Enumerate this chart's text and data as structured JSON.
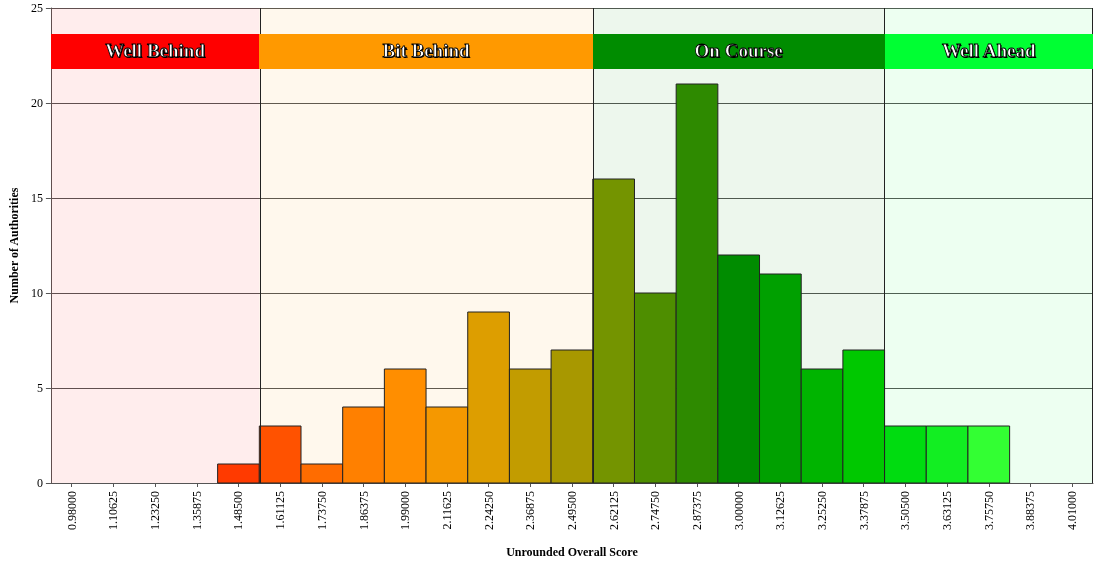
{
  "chart_data": {
    "type": "histogram",
    "xlabel": "Unrounded Overall Score",
    "ylabel": "Number of Authorities",
    "bins": [
      0.916875,
      1.043125,
      1.169375,
      1.295625,
      1.421875,
      1.548125,
      1.674375,
      1.800625,
      1.926875,
      2.053125,
      2.179375,
      2.305625,
      2.431875,
      2.558125,
      2.684375,
      2.810625,
      2.936875,
      3.063125,
      3.189375,
      3.315625,
      3.441875,
      3.568125,
      3.694375,
      3.820625,
      3.946875,
      4.073125
    ],
    "values": [
      0,
      0,
      0,
      0,
      1,
      3,
      1,
      4,
      6,
      4,
      9,
      6,
      7,
      16,
      10,
      21,
      12,
      11,
      6,
      7,
      3,
      3,
      3,
      0,
      0
    ],
    "colors": [
      "#ff2200",
      "#ff2200",
      "#ff2200",
      "#ff2200",
      "#ff3a00",
      "#ff5200",
      "#ff6c00",
      "#ff8000",
      "#ff8e00",
      "#f59800",
      "#dd9e00",
      "#c29c00",
      "#a89800",
      "#749400",
      "#4e8e00",
      "#2e8a00",
      "#008c00",
      "#00a000",
      "#00b400",
      "#00c800",
      "#00dc10",
      "#12ee22",
      "#33ff33",
      "#33ff33",
      "#33ff33"
    ],
    "xlim": [
      0.916875,
      4.073125
    ],
    "xticks": [
      {
        "value": 0.98,
        "label": "0.98000"
      },
      {
        "value": 1.10625,
        "label": "1.10625"
      },
      {
        "value": 1.2325,
        "label": "1.23250"
      },
      {
        "value": 1.35875,
        "label": "1.35875"
      },
      {
        "value": 1.485,
        "label": "1.48500"
      },
      {
        "value": 1.61125,
        "label": "1.61125"
      },
      {
        "value": 1.7375,
        "label": "1.73750"
      },
      {
        "value": 1.86375,
        "label": "1.86375"
      },
      {
        "value": 1.99,
        "label": "1.99000"
      },
      {
        "value": 2.11625,
        "label": "2.11625"
      },
      {
        "value": 2.2425,
        "label": "2.24250"
      },
      {
        "value": 2.36875,
        "label": "2.36875"
      },
      {
        "value": 2.495,
        "label": "2.49500"
      },
      {
        "value": 2.62125,
        "label": "2.62125"
      },
      {
        "value": 2.7475,
        "label": "2.74750"
      },
      {
        "value": 2.87375,
        "label": "2.87375"
      },
      {
        "value": 3.0,
        "label": "3.00000"
      },
      {
        "value": 3.12625,
        "label": "3.12625"
      },
      {
        "value": 3.2525,
        "label": "3.25250"
      },
      {
        "value": 3.37875,
        "label": "3.37875"
      },
      {
        "value": 3.505,
        "label": "3.50500"
      },
      {
        "value": 3.63125,
        "label": "3.63125"
      },
      {
        "value": 3.7575,
        "label": "3.75750"
      },
      {
        "value": 3.88375,
        "label": "3.88375"
      },
      {
        "value": 4.01,
        "label": "4.01000"
      }
    ],
    "ylim": [
      0,
      25
    ],
    "yticks": [
      0,
      5,
      10,
      15,
      20,
      25
    ],
    "grid": "y",
    "bands": [
      {
        "axis": "x",
        "from": 0.916875,
        "to": 1.548125,
        "label": "Well Behind",
        "color": "#ff0000"
      },
      {
        "axis": "x",
        "from": 1.548125,
        "to": 2.558125,
        "label": "Bit Behind",
        "color": "#ff9900"
      },
      {
        "axis": "x",
        "from": 2.558125,
        "to": 3.441875,
        "label": "On Course",
        "color": "#008c00"
      },
      {
        "axis": "x",
        "from": 3.441875,
        "to": 4.073125,
        "label": "Well Ahead",
        "color": "#00ff33"
      }
    ]
  }
}
